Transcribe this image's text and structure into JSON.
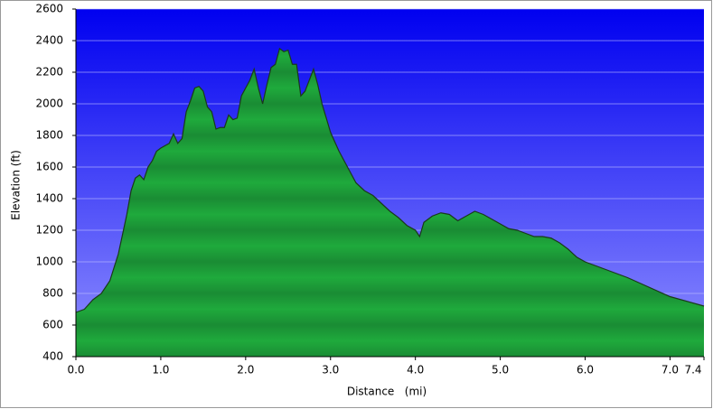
{
  "chart_data": {
    "type": "area",
    "x_label": "Distance   (mi)",
    "y_label": "Elevation (ft)",
    "x": [
      0,
      0.1,
      0.2,
      0.3,
      0.4,
      0.5,
      0.6,
      0.65,
      0.7,
      0.75,
      0.8,
      0.85,
      0.9,
      0.95,
      1.0,
      1.1,
      1.15,
      1.2,
      1.25,
      1.3,
      1.35,
      1.4,
      1.45,
      1.5,
      1.55,
      1.6,
      1.65,
      1.7,
      1.75,
      1.8,
      1.85,
      1.9,
      1.95,
      2.0,
      2.05,
      2.1,
      2.15,
      2.2,
      2.25,
      2.3,
      2.35,
      2.4,
      2.45,
      2.5,
      2.55,
      2.6,
      2.65,
      2.7,
      2.75,
      2.8,
      2.85,
      2.9,
      3.0,
      3.1,
      3.2,
      3.3,
      3.4,
      3.5,
      3.6,
      3.7,
      3.8,
      3.9,
      4.0,
      4.05,
      4.1,
      4.2,
      4.3,
      4.4,
      4.5,
      4.6,
      4.7,
      4.8,
      4.9,
      5.0,
      5.1,
      5.2,
      5.3,
      5.4,
      5.5,
      5.6,
      5.7,
      5.8,
      5.9,
      6.0,
      6.5,
      7.0,
      7.4
    ],
    "values": [
      680,
      700,
      760,
      800,
      880,
      1050,
      1300,
      1450,
      1530,
      1550,
      1520,
      1600,
      1640,
      1700,
      1720,
      1750,
      1810,
      1750,
      1780,
      1950,
      2020,
      2100,
      2110,
      2080,
      1980,
      1950,
      1840,
      1850,
      1850,
      1930,
      1900,
      1910,
      2050,
      2100,
      2150,
      2220,
      2100,
      2000,
      2120,
      2230,
      2250,
      2350,
      2330,
      2340,
      2250,
      2250,
      2050,
      2080,
      2150,
      2220,
      2120,
      2000,
      1820,
      1700,
      1600,
      1500,
      1450,
      1420,
      1370,
      1320,
      1280,
      1230,
      1200,
      1160,
      1250,
      1290,
      1310,
      1300,
      1260,
      1290,
      1320,
      1300,
      1270,
      1240,
      1210,
      1200,
      1180,
      1160,
      1160,
      1150,
      1120,
      1080,
      1030,
      1000,
      900,
      780,
      720
    ],
    "color": "#1faa3c",
    "xlim": [
      0,
      7.4
    ],
    "xticks": [
      {
        "value": 0,
        "label": "0.0"
      },
      {
        "value": 1,
        "label": "1.0"
      },
      {
        "value": 2,
        "label": "2.0"
      },
      {
        "value": 3,
        "label": "3.0"
      },
      {
        "value": 4,
        "label": "4.0"
      },
      {
        "value": 5,
        "label": "5.0"
      },
      {
        "value": 6,
        "label": "6.0"
      },
      {
        "value": 7,
        "label": "7.0"
      },
      {
        "value": 7.4,
        "label": "7.4"
      }
    ],
    "ylim": [
      400,
      2600
    ],
    "yticks": [
      400,
      600,
      800,
      1000,
      1200,
      1400,
      1600,
      1800,
      2000,
      2200,
      2400,
      2600
    ],
    "grid": true
  }
}
